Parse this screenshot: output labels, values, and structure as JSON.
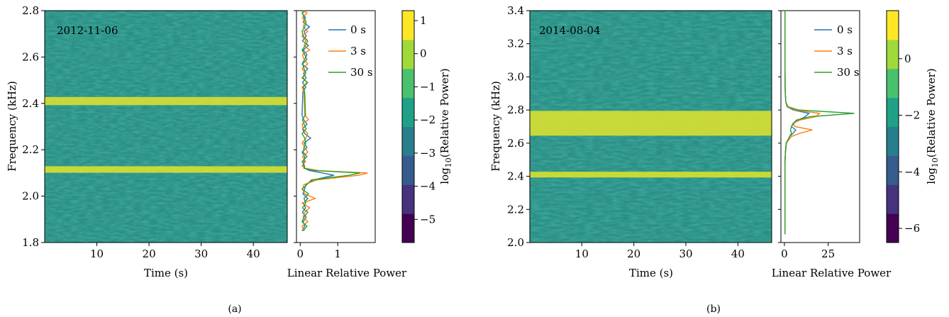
{
  "figure": {
    "colors": {
      "spectrogram_base": "#2a8f86",
      "band": "#d8e030",
      "series": [
        "#1f77b4",
        "#ff7f0e",
        "#2ca02c"
      ],
      "colormap": [
        "#440154",
        "#46327e",
        "#365c8d",
        "#277f8e",
        "#1fa187",
        "#4ac16d",
        "#a0da39",
        "#fde725"
      ]
    }
  },
  "chart_data": [
    {
      "type": "heatmap",
      "panel_caption": "(a)",
      "date_label": "2012-11-06",
      "xlabel": "Time (s)",
      "ylabel": "Frequency (kHz)",
      "xlim": [
        0,
        46.5
      ],
      "ylim": [
        1.8,
        2.8
      ],
      "xticks": [
        "10",
        "20",
        "30",
        "40"
      ],
      "xtick_values": [
        10,
        20,
        30,
        40
      ],
      "yticks": [
        "1.8",
        "2.0",
        "2.2",
        "2.4",
        "2.6",
        "2.8"
      ],
      "ytick_values": [
        1.8,
        2.0,
        2.2,
        2.4,
        2.6,
        2.8
      ],
      "bands_khz": [
        {
          "center": 2.41,
          "width": 0.035
        },
        {
          "center": 2.115,
          "width": 0.028
        }
      ],
      "profile": {
        "type": "line",
        "xlabel": "Linear Relative Power",
        "xlim": [
          -0.1,
          2.0
        ],
        "xticks": [
          "0",
          "1"
        ],
        "xtick_values": [
          0,
          1
        ],
        "legend_position": "top-right",
        "legend": [
          "0 s",
          "3 s",
          "30 s"
        ],
        "freq": [
          1.85,
          1.87,
          1.89,
          1.91,
          1.93,
          1.95,
          1.97,
          1.99,
          2.01,
          2.03,
          2.05,
          2.07,
          2.09,
          2.1,
          2.11,
          2.12,
          2.13,
          2.15,
          2.17,
          2.19,
          2.21,
          2.23,
          2.25,
          2.27,
          2.29,
          2.31,
          2.33,
          2.35,
          2.45,
          2.47,
          2.49,
          2.51,
          2.53,
          2.55,
          2.57,
          2.59,
          2.61,
          2.63,
          2.65,
          2.67,
          2.69,
          2.71,
          2.73,
          2.75,
          2.77,
          2.79,
          2.8
        ],
        "series": [
          {
            "name": "0 s",
            "values": [
              0.05,
              0.12,
              0.08,
              0.16,
              0.06,
              0.14,
              0.09,
              0.2,
              0.07,
              0.12,
              0.15,
              0.35,
              0.9,
              0.6,
              0.25,
              0.12,
              0.08,
              0.1,
              0.12,
              0.05,
              0.18,
              0.1,
              0.28,
              0.12,
              0.06,
              0.18,
              0.09,
              0.05,
              0.07,
              0.15,
              0.06,
              0.16,
              0.09,
              0.2,
              0.05,
              0.12,
              0.18,
              0.08,
              0.22,
              0.06,
              0.16,
              0.1,
              0.25,
              0.08,
              0.14,
              0.05,
              0.1
            ]
          },
          {
            "name": "3 s",
            "values": [
              0.1,
              0.05,
              0.2,
              0.08,
              0.12,
              0.25,
              0.05,
              0.4,
              0.12,
              0.06,
              0.1,
              0.45,
              1.55,
              1.8,
              0.5,
              0.15,
              0.05,
              0.14,
              0.06,
              0.2,
              0.12,
              0.05,
              0.15,
              0.2,
              0.08,
              0.05,
              0.22,
              0.12,
              0.1,
              0.05,
              0.18,
              0.08,
              0.14,
              0.05,
              0.2,
              0.1,
              0.06,
              0.25,
              0.1,
              0.15,
              0.05,
              0.2,
              0.08,
              0.12,
              0.06,
              0.18,
              0.08
            ]
          },
          {
            "name": "30 s",
            "values": [
              0.08,
              0.18,
              0.05,
              0.1,
              0.2,
              0.06,
              0.15,
              0.1,
              0.22,
              0.05,
              0.18,
              0.3,
              1.3,
              1.6,
              0.4,
              0.1,
              0.12,
              0.05,
              0.18,
              0.08,
              0.1,
              0.15,
              0.12,
              0.05,
              0.16,
              0.1,
              0.06,
              0.14,
              0.12,
              0.08,
              0.2,
              0.05,
              0.15,
              0.1,
              0.06,
              0.18,
              0.12,
              0.05,
              0.14,
              0.2,
              0.08,
              0.05,
              0.12,
              0.16,
              0.1,
              0.06,
              0.12
            ]
          }
        ]
      },
      "colorbar": {
        "label_base": "log",
        "label_sub": "10",
        "label_rest": "(Relative Power)",
        "range": [
          -5.7,
          1.3
        ],
        "ticks": [
          "1",
          "0",
          "−1",
          "−2",
          "−3",
          "−4",
          "−5"
        ],
        "tick_values": [
          1,
          0,
          -1,
          -2,
          -3,
          -4,
          -5
        ]
      }
    },
    {
      "type": "heatmap",
      "panel_caption": "(b)",
      "date_label": "2014-08-04",
      "xlabel": "Time (s)",
      "ylabel": "Frequency (kHz)",
      "xlim": [
        0,
        46.5
      ],
      "ylim": [
        2.0,
        3.4
      ],
      "xticks": [
        "10",
        "20",
        "30",
        "40"
      ],
      "xtick_values": [
        10,
        20,
        30,
        40
      ],
      "yticks": [
        "2.0",
        "2.2",
        "2.4",
        "2.6",
        "2.8",
        "3.0",
        "3.2",
        "3.4"
      ],
      "ytick_values": [
        2.0,
        2.2,
        2.4,
        2.6,
        2.8,
        3.0,
        3.2,
        3.4
      ],
      "bands_khz": [
        {
          "center": 2.41,
          "width": 0.035
        },
        {
          "center": 2.72,
          "width": 0.15
        }
      ],
      "profile": {
        "type": "line",
        "xlabel": "Linear Relative Power",
        "xlim": [
          -2,
          43
        ],
        "xticks": [
          "0",
          "25"
        ],
        "xtick_values": [
          0,
          25
        ],
        "legend_position": "top-right",
        "legend": [
          "0 s",
          "3 s",
          "30 s"
        ],
        "freq": [
          2.05,
          2.1,
          2.15,
          2.2,
          2.25,
          2.3,
          2.35,
          2.45,
          2.5,
          2.55,
          2.6,
          2.62,
          2.64,
          2.66,
          2.68,
          2.7,
          2.72,
          2.74,
          2.76,
          2.78,
          2.8,
          2.82,
          2.85,
          2.9,
          2.95,
          3.0,
          3.05,
          3.1,
          3.15,
          3.2,
          3.25,
          3.3,
          3.35,
          3.4
        ],
        "series": [
          {
            "name": "0 s",
            "values": [
              0.3,
              0.3,
              0.3,
              0.3,
              0.3,
              0.3,
              0.3,
              0.3,
              0.4,
              0.6,
              1.0,
              2.0,
              3.0,
              5.0,
              6.5,
              4.0,
              5.5,
              8.0,
              12.0,
              14.0,
              5.0,
              1.5,
              0.8,
              0.5,
              0.4,
              0.4,
              0.3,
              0.3,
              0.3,
              0.3,
              0.3,
              0.3,
              0.3,
              0.3
            ]
          },
          {
            "name": "3 s",
            "values": [
              0.3,
              0.3,
              0.3,
              0.3,
              0.3,
              0.3,
              0.3,
              0.3,
              0.4,
              0.7,
              1.2,
              2.5,
              4.0,
              9.0,
              16.0,
              6.0,
              5.0,
              9.0,
              18.0,
              20.0,
              6.0,
              1.5,
              0.8,
              0.5,
              0.4,
              0.4,
              0.3,
              0.3,
              0.3,
              0.3,
              0.3,
              0.3,
              0.3,
              0.3
            ]
          },
          {
            "name": "30 s",
            "values": [
              0.3,
              0.3,
              0.3,
              0.3,
              0.3,
              0.3,
              0.3,
              0.3,
              0.4,
              0.6,
              1.0,
              2.0,
              3.0,
              4.0,
              3.5,
              4.0,
              5.0,
              7.0,
              15.0,
              40.0,
              8.0,
              2.0,
              0.8,
              0.5,
              0.4,
              0.4,
              0.3,
              0.3,
              0.3,
              0.3,
              0.3,
              0.3,
              0.3,
              0.3
            ]
          }
        ]
      },
      "colorbar": {
        "label_base": "log",
        "label_sub": "10",
        "label_rest": "(Relative Power)",
        "range": [
          -6.5,
          1.7
        ],
        "ticks": [
          "0",
          "−2",
          "−4",
          "−6"
        ],
        "tick_values": [
          0,
          -2,
          -4,
          -6
        ]
      }
    }
  ]
}
